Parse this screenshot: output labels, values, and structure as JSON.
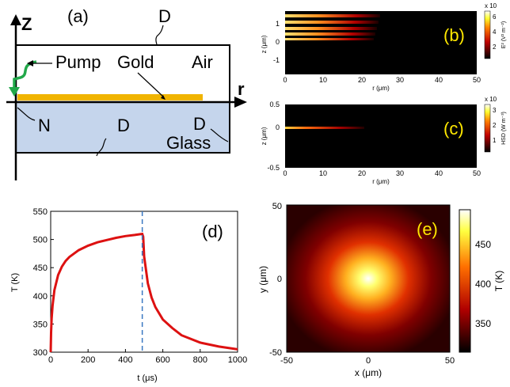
{
  "panel_a": {
    "label": "(a)",
    "z_axis": "Z",
    "r_axis": "r",
    "top_boundary": "D",
    "pump": "Pump",
    "gold": "Gold",
    "air": "Air",
    "n_boundary": "N",
    "glass_boundary_left": "D",
    "glass_boundary_right": "D",
    "glass": "Glass",
    "colors": {
      "gold": "#f0b400",
      "glass": "#c5d5ec",
      "pump_arrow": "#22a84a"
    }
  },
  "panel_b": {
    "label": "(b)",
    "ylabel": "z (μm)",
    "xlabel": "r (μm)",
    "cbar_label": "E² (V² m⁻²)",
    "cbar_exp": "x 10",
    "x_ticks": [
      "0",
      "10",
      "20",
      "30",
      "40",
      "50"
    ],
    "y_ticks": [
      "1",
      "0",
      "-1"
    ],
    "cbar_ticks": [
      "6",
      "4",
      "2"
    ]
  },
  "panel_c": {
    "label": "(c)",
    "ylabel": "z (μm)",
    "xlabel": "r (μm)",
    "cbar_label": "HSD (W m⁻³)",
    "cbar_exp": "x 10",
    "x_ticks": [
      "0",
      "10",
      "20",
      "30",
      "40",
      "50"
    ],
    "y_ticks": [
      "0.5",
      "0",
      "-0.5"
    ],
    "cbar_ticks": [
      "3",
      "2",
      "1"
    ]
  },
  "panel_e": {
    "label": "(e)",
    "xlabel": "x  (μm)",
    "ylabel": "y  (μm)",
    "cbar_label": "T (K)",
    "x_ticks": [
      "-50",
      "0",
      "50"
    ],
    "y_ticks": [
      "50",
      "0",
      "-50"
    ],
    "cbar_ticks": [
      "450",
      "400",
      "350"
    ]
  },
  "chart_data": [
    {
      "type": "line",
      "label": "(d)",
      "xlabel": "t (μs)",
      "ylabel": "T (K)",
      "xlim": [
        0,
        1000
      ],
      "ylim": [
        300,
        550
      ],
      "x_ticks": [
        0,
        200,
        400,
        600,
        800,
        1000
      ],
      "y_ticks": [
        300,
        350,
        400,
        450,
        500,
        550
      ],
      "grid": false,
      "line_color": "#dd1111",
      "marker_line": {
        "x": 490,
        "style": "dashed",
        "color": "#3a78c2"
      },
      "series": [
        {
          "x": [
            0,
            2,
            5,
            10,
            20,
            40,
            60,
            80,
            100,
            150,
            200,
            250,
            300,
            350,
            400,
            450,
            490,
            495,
            500,
            520,
            540,
            560,
            600,
            650,
            700,
            800,
            900,
            1000
          ],
          "y": [
            300,
            335,
            360,
            383,
            410,
            437,
            452,
            462,
            469,
            481,
            489,
            495,
            499,
            503,
            506,
            508,
            510,
            505,
            470,
            422,
            397,
            380,
            358,
            343,
            330,
            317,
            310,
            305
          ]
        }
      ]
    }
  ]
}
